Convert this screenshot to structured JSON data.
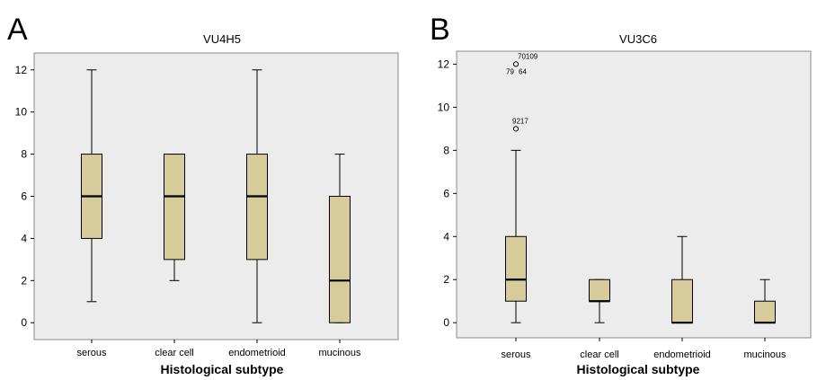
{
  "chart_data": [
    {
      "type": "box",
      "panel_label": "A",
      "title": "VU4H5",
      "xlabel": "Histological subtype",
      "ylabel": "",
      "ylim": [
        -0.8,
        12.8
      ],
      "yticks": [
        0,
        2,
        4,
        6,
        8,
        10,
        12
      ],
      "grid": false,
      "categories": [
        "serous",
        "clear cell",
        "endometrioid",
        "mucinous"
      ],
      "boxes": [
        {
          "whisker_low": 1,
          "q1": 4,
          "median": 6,
          "q3": 8,
          "whisker_high": 12
        },
        {
          "whisker_low": 2,
          "q1": 3,
          "median": 6,
          "q3": 8,
          "whisker_high": 8
        },
        {
          "whisker_low": 0,
          "q1": 3,
          "median": 6,
          "q3": 8,
          "whisker_high": 12
        },
        {
          "whisker_low": 0,
          "q1": 0,
          "median": 2,
          "q3": 6,
          "whisker_high": 8
        }
      ],
      "outliers": [],
      "colors": {
        "box_fill": "#d6cc9b",
        "plot_bg": "#ececec"
      }
    },
    {
      "type": "box",
      "panel_label": "B",
      "title": "VU3C6",
      "xlabel": "Histological subtype",
      "ylabel": "",
      "ylim": [
        -0.7,
        12.6
      ],
      "yticks": [
        0,
        2,
        4,
        6,
        8,
        10,
        12
      ],
      "grid": false,
      "categories": [
        "serous",
        "clear cell",
        "endometrioid",
        "mucinous"
      ],
      "boxes": [
        {
          "whisker_low": 0,
          "q1": 1,
          "median": 2,
          "q3": 4,
          "whisker_high": 8
        },
        {
          "whisker_low": 0,
          "q1": 1,
          "median": 1,
          "q3": 2,
          "whisker_high": 2
        },
        {
          "whisker_low": 0,
          "q1": 0,
          "median": 0,
          "q3": 2,
          "whisker_high": 4
        },
        {
          "whisker_low": 0,
          "q1": 0,
          "median": 0,
          "q3": 1,
          "whisker_high": 2
        }
      ],
      "outliers": [
        {
          "category": 0,
          "value": 12,
          "labels": [
            "70109",
            "79",
            "64"
          ]
        },
        {
          "category": 0,
          "value": 9,
          "labels": [
            "9217"
          ]
        }
      ],
      "colors": {
        "box_fill": "#d6cc9b",
        "plot_bg": "#ececec"
      }
    }
  ]
}
